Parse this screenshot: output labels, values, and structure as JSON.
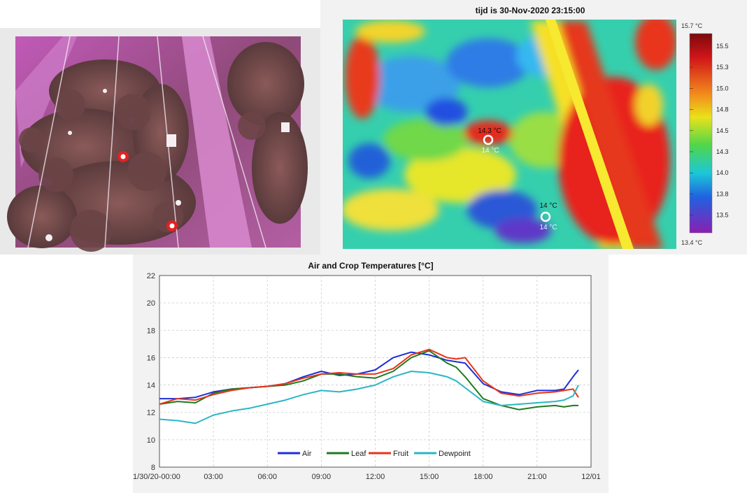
{
  "photo": {
    "markers": [
      "marker-1",
      "marker-2"
    ]
  },
  "thermal": {
    "title": "tijd is 30-Nov-2020 23:15:00",
    "colorbar": {
      "max_label": "15.7 °C",
      "min_label": "13.4 °C",
      "ticks": [
        "15.5",
        "15.3",
        "15.0",
        "14.8",
        "14.5",
        "14.3",
        "14.0",
        "13.8",
        "13.5"
      ]
    },
    "spots": [
      {
        "top_label": "14.3 °C",
        "bottom_label": "14.3 °C"
      },
      {
        "top_label": "14 °C",
        "bottom_label": "14 °C"
      }
    ]
  },
  "chart_data": {
    "type": "line",
    "title": "Air and Crop Temperatures [°C]",
    "xlabel": "",
    "ylabel": "",
    "x_ticks": [
      "1/30/20-00:00",
      "03:00",
      "06:00",
      "09:00",
      "12:00",
      "15:00",
      "18:00",
      "21:00",
      "12/01"
    ],
    "xlim": [
      0,
      24
    ],
    "ylim": [
      8,
      22
    ],
    "y_ticks": [
      8,
      10,
      12,
      14,
      16,
      18,
      20,
      22
    ],
    "grid": true,
    "legend": "bottom-center",
    "x": [
      0,
      1,
      2,
      3,
      4,
      5,
      6,
      7,
      8,
      9,
      10,
      11,
      12,
      13,
      14,
      15,
      16,
      16.5,
      17,
      18,
      19,
      20,
      21,
      22,
      22.5,
      23,
      23.3
    ],
    "series": [
      {
        "name": "Air",
        "color": "#1f2ed8",
        "values": [
          13.0,
          13.0,
          13.1,
          13.5,
          13.7,
          13.8,
          13.9,
          14.1,
          14.6,
          15.0,
          14.7,
          14.8,
          15.1,
          16.0,
          16.4,
          16.2,
          15.8,
          15.7,
          15.6,
          14.1,
          13.5,
          13.3,
          13.6,
          13.6,
          13.7,
          14.6,
          15.1
        ]
      },
      {
        "name": "Leaf",
        "color": "#1f7a1f",
        "values": [
          12.6,
          12.8,
          12.7,
          13.4,
          13.7,
          13.8,
          13.9,
          14.0,
          14.3,
          14.8,
          14.8,
          14.6,
          14.5,
          15.0,
          16.0,
          16.5,
          15.6,
          15.3,
          14.6,
          13.0,
          12.5,
          12.2,
          12.4,
          12.5,
          12.4,
          12.5,
          12.5
        ]
      },
      {
        "name": "Fruit",
        "color": "#e8331a",
        "values": [
          12.6,
          13.0,
          12.9,
          13.3,
          13.6,
          13.8,
          13.9,
          14.1,
          14.5,
          14.8,
          14.9,
          14.8,
          14.8,
          15.2,
          16.2,
          16.6,
          16.0,
          15.9,
          16.0,
          14.3,
          13.4,
          13.2,
          13.4,
          13.5,
          13.6,
          13.7,
          13.1
        ]
      },
      {
        "name": "Dewpoint",
        "color": "#2bb6c4",
        "values": [
          11.5,
          11.4,
          11.2,
          11.8,
          12.1,
          12.3,
          12.6,
          12.9,
          13.3,
          13.6,
          13.5,
          13.7,
          14.0,
          14.6,
          15.0,
          14.9,
          14.6,
          14.3,
          13.8,
          12.8,
          12.5,
          12.6,
          12.7,
          12.8,
          12.9,
          13.2,
          14.0
        ]
      }
    ]
  }
}
